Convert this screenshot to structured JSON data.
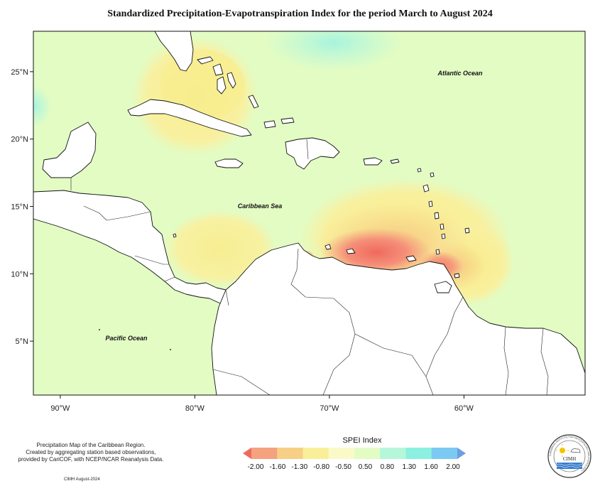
{
  "title": "Standardized Precipitation-Evapotranspiration Index for the period March to August 2024",
  "map": {
    "lon_range": [
      -92,
      -51
    ],
    "lat_range": [
      1,
      28
    ],
    "lon_ticks": [
      {
        "value": -90,
        "label": "90°W"
      },
      {
        "value": -80,
        "label": "80°W"
      },
      {
        "value": -70,
        "label": "70°W"
      },
      {
        "value": -60,
        "label": "60°W"
      }
    ],
    "lat_ticks": [
      {
        "value": 25,
        "label": "25°N"
      },
      {
        "value": 20,
        "label": "20°N"
      },
      {
        "value": 15,
        "label": "15°N"
      },
      {
        "value": 10,
        "label": "10°N"
      },
      {
        "value": 5,
        "label": "5°N"
      }
    ],
    "labels": {
      "atlantic": "Atlantic Ocean",
      "caribbean": "Caribbean Sea",
      "pacific": "Pacific Ocean"
    },
    "background_color": "#e2fcc4"
  },
  "legend": {
    "title": "SPEI Index",
    "ticks": [
      "-2.00",
      "-1.60",
      "-1.30",
      "-0.80",
      "-0.50",
      "0.50",
      "0.80",
      "1.30",
      "1.60",
      "2.00"
    ],
    "colors": [
      "#f06a5c",
      "#f5a27e",
      "#f7cf86",
      "#f9ef9a",
      "#fafac8",
      "#e2fcc4",
      "#b5f7da",
      "#8cf0e0",
      "#7ccaf3",
      "#6d9ee0"
    ]
  },
  "footnote": {
    "line1": "Precipitation Map of the Caribbean Region.",
    "line2": "Created by aggregating station based observations,",
    "line3": "provided by CariCOF, with NCEP/NCAR Reanalysis Data."
  },
  "credit": "CIMH August-2024",
  "logo": {
    "text": "CIMH",
    "ring_text": "CARIBBEAN INSTITUTE FOR METEOROLOGY AND HYDROLOGY"
  }
}
